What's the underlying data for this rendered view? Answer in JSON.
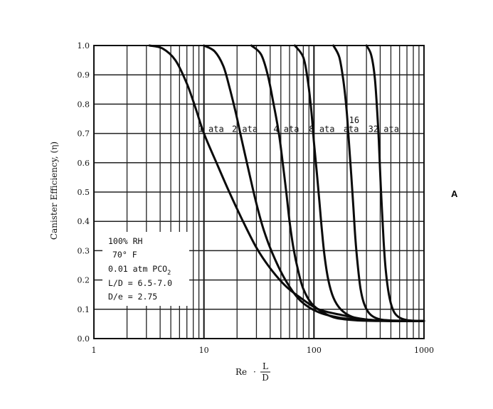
{
  "chart_data": {
    "type": "line",
    "xlabel": "Re · L/D",
    "ylabel": "Canister Efficiency, (η)",
    "xscale": "log",
    "xlim": [
      1,
      1000
    ],
    "ylim": [
      0,
      1
    ],
    "x_ticks": [
      "1",
      "10",
      "100",
      "1000"
    ],
    "y_ticks": [
      "0.0",
      "0.1",
      "0.2",
      "0.3",
      "0.4",
      "0.5",
      "0.6",
      "0.7",
      "0.8",
      "0.9",
      "1.0"
    ],
    "grid": true,
    "series": [
      {
        "name": "1 ata",
        "x": [
          3.2,
          4.2,
          5.5,
          7,
          8.5,
          10,
          13,
          17,
          22,
          30,
          40,
          55,
          75,
          110,
          180,
          300,
          500,
          1000
        ],
        "y": [
          1.0,
          0.99,
          0.95,
          0.87,
          0.78,
          0.7,
          0.6,
          0.5,
          0.41,
          0.31,
          0.24,
          0.18,
          0.14,
          0.1,
          0.08,
          0.065,
          0.06,
          0.06
        ]
      },
      {
        "name": "2 ata",
        "x": [
          10,
          12.5,
          15,
          17,
          19.5,
          22,
          26,
          30,
          35,
          42,
          55,
          75,
          110,
          180,
          300,
          500,
          1000
        ],
        "y": [
          1.0,
          0.98,
          0.93,
          0.86,
          0.77,
          0.68,
          0.56,
          0.46,
          0.37,
          0.29,
          0.2,
          0.13,
          0.09,
          0.07,
          0.065,
          0.06,
          0.06
        ]
      },
      {
        "name": "4 ata",
        "x": [
          27,
          33,
          38,
          43,
          48,
          52,
          56,
          60,
          65,
          72,
          80,
          95,
          120,
          160,
          250,
          400,
          1000
        ],
        "y": [
          1.0,
          0.97,
          0.9,
          0.8,
          0.7,
          0.6,
          0.5,
          0.4,
          0.31,
          0.23,
          0.17,
          0.12,
          0.09,
          0.07,
          0.062,
          0.06,
          0.06
        ]
      },
      {
        "name": "8 ata",
        "x": [
          67,
          80,
          88,
          95,
          100,
          106,
          112,
          118,
          125,
          135,
          150,
          175,
          220,
          300,
          500,
          1000
        ],
        "y": [
          1.0,
          0.96,
          0.88,
          0.77,
          0.67,
          0.57,
          0.47,
          0.37,
          0.28,
          0.2,
          0.14,
          0.1,
          0.075,
          0.065,
          0.06,
          0.06
        ]
      },
      {
        "name": "16 ata",
        "x": [
          150,
          170,
          185,
          198,
          208,
          218,
          228,
          238,
          250,
          265,
          285,
          320,
          380,
          500,
          1000
        ],
        "y": [
          1.0,
          0.96,
          0.88,
          0.78,
          0.67,
          0.56,
          0.45,
          0.34,
          0.25,
          0.17,
          0.12,
          0.085,
          0.068,
          0.062,
          0.06
        ]
      },
      {
        "name": "32 ata",
        "x": [
          300,
          330,
          355,
          372,
          388,
          400,
          415,
          430,
          450,
          480,
          520,
          580,
          700,
          1000
        ],
        "y": [
          1.0,
          0.97,
          0.9,
          0.8,
          0.68,
          0.56,
          0.44,
          0.33,
          0.23,
          0.15,
          0.1,
          0.075,
          0.063,
          0.06
        ]
      }
    ],
    "series_labels": [
      {
        "text": "1 ata",
        "x": 11.6,
        "y": 0.715
      },
      {
        "text": "2 ata",
        "x": 23.5,
        "y": 0.715
      },
      {
        "text": "4 ata",
        "x": 56,
        "y": 0.715
      },
      {
        "text": "8 ata",
        "x": 118,
        "y": 0.715
      },
      {
        "text": "16",
        "x": 232,
        "y": 0.745
      },
      {
        "text": "ata",
        "x": 218,
        "y": 0.715
      },
      {
        "text": "32 ata",
        "x": 430,
        "y": 0.715
      }
    ],
    "annotations": [
      "100% RH",
      "70° F",
      "0.01 atm PCO",
      "L/D = 6.5-7.0",
      "D/e = 2.75"
    ],
    "annotation_subscript": "2",
    "panel_letter": "A"
  }
}
